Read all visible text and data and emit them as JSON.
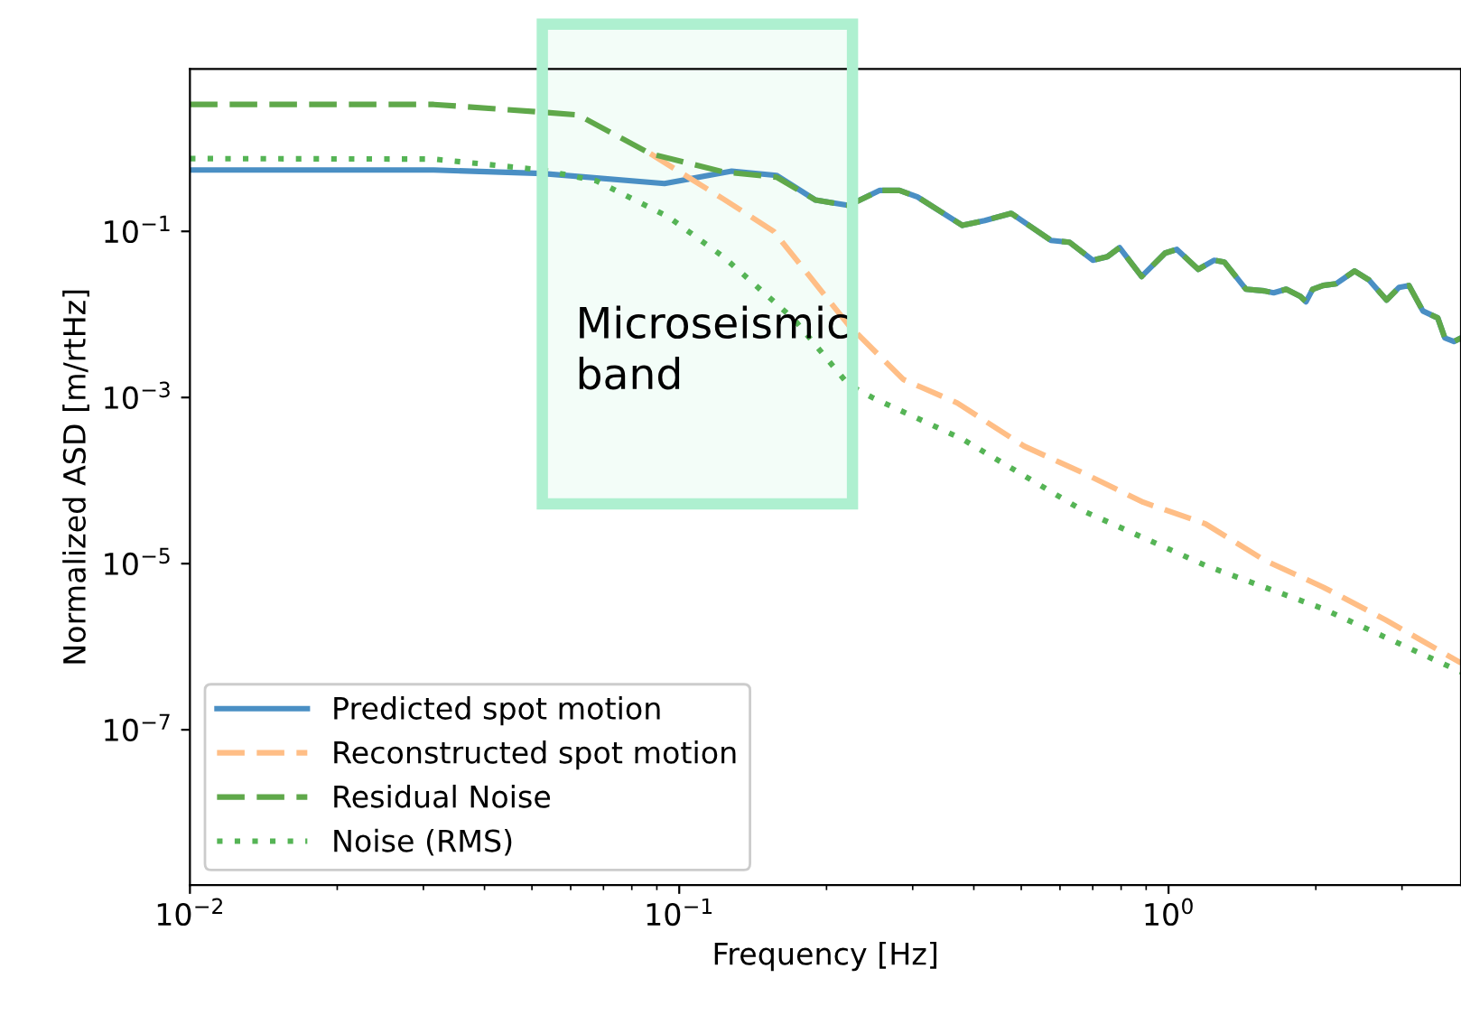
{
  "chart_data": {
    "type": "line",
    "xlabel": "Frequency [Hz]",
    "ylabel": "Normalized ASD [m/rtHz]",
    "log": "xy",
    "xlim": [
      0.01,
      3.96
    ],
    "ylim": [
      1.35e-09,
      9
    ],
    "xticks": [
      {
        "value": 0.01,
        "label": "10$^{−2}$"
      },
      {
        "value": 0.1,
        "label": "10$^{−1}$"
      },
      {
        "value": 1,
        "label": "10$^{0}$"
      }
    ],
    "yticks": [
      {
        "value": 1e-07,
        "label": "10$^{−7}$"
      },
      {
        "value": 1e-05,
        "label": "10$^{−5}$"
      },
      {
        "value": 0.001,
        "label": "10$^{−3}$"
      },
      {
        "value": 0.1,
        "label": "10$^{−1}$"
      }
    ],
    "grid": false,
    "legend": "bottom left",
    "bands": [
      {
        "axis": "x",
        "from": 0.0525,
        "to": 0.226,
        "label": "Microseismic\nband",
        "color": "#aef0d0"
      }
    ],
    "series": [
      {
        "name": "Predicted spot motion",
        "color": "#4a8fc4",
        "line_style": "solid",
        "x": [
          0.01,
          0.0315,
          0.0525,
          0.0933,
          0.128,
          0.158,
          0.19,
          0.222,
          0.257,
          0.282,
          0.307,
          0.379,
          0.421,
          0.477,
          0.575,
          0.627,
          0.7,
          0.75,
          0.794,
          0.881,
          0.984,
          1.04,
          1.15,
          1.24,
          1.3,
          1.44,
          1.57,
          1.64,
          1.74,
          1.86,
          1.91,
          1.97,
          2.07,
          2.2,
          2.4,
          2.57,
          2.79,
          2.96,
          3.1,
          3.31,
          3.55,
          3.67,
          3.83,
          3.96
        ],
        "values": [
          0.548,
          0.548,
          0.497,
          0.377,
          0.53,
          0.472,
          0.238,
          0.205,
          0.311,
          0.311,
          0.259,
          0.118,
          0.135,
          0.165,
          0.0779,
          0.0741,
          0.0449,
          0.0496,
          0.0637,
          0.0286,
          0.0548,
          0.0607,
          0.0349,
          0.0449,
          0.0427,
          0.0201,
          0.0192,
          0.0182,
          0.0201,
          0.0165,
          0.0142,
          0.0201,
          0.0223,
          0.0234,
          0.0333,
          0.0259,
          0.0149,
          0.0212,
          0.0223,
          0.011,
          0.00906,
          0.00521,
          0.00472,
          0.00521
        ]
      },
      {
        "name": "Reconstructed spot motion",
        "color": "#ffbe86",
        "line_style": "dashed",
        "x": [
          0.0873,
          0.123,
          0.156,
          0.222,
          0.287,
          0.37,
          0.507,
          0.672,
          0.888,
          1.19,
          1.57,
          2.07,
          2.77,
          3.96
        ],
        "values": [
          0.861,
          0.246,
          0.1,
          0.00741,
          0.00165,
          0.00086,
          0.000259,
          0.000122,
          5.48e-05,
          3.01e-05,
          1.1e-05,
          5.21e-06,
          2.12e-06,
          6.37e-07
        ]
      },
      {
        "name": "Residual Noise",
        "color": "#5fa84a",
        "line_style": "dashed",
        "x": [
          0.01,
          0.0315,
          0.0525,
          0.0621,
          0.0873,
          0.123,
          0.158,
          0.19,
          0.222,
          0.257,
          0.282,
          0.307,
          0.379,
          0.421,
          0.477,
          0.575,
          0.627,
          0.7,
          0.75,
          0.794,
          0.881,
          0.984,
          1.04,
          1.15,
          1.24,
          1.3,
          1.44,
          1.57,
          1.64,
          1.74,
          1.86,
          1.91,
          1.97,
          2.07,
          2.2,
          2.4,
          2.57,
          2.79,
          2.96,
          3.1,
          3.31,
          3.55,
          3.67,
          3.83,
          3.96
        ],
        "values": [
          3.37,
          3.37,
          2.72,
          2.52,
          0.861,
          0.521,
          0.449,
          0.238,
          0.205,
          0.311,
          0.311,
          0.259,
          0.118,
          0.135,
          0.165,
          0.0779,
          0.0741,
          0.0449,
          0.0496,
          0.0637,
          0.0286,
          0.0548,
          0.0607,
          0.0349,
          0.0449,
          0.0427,
          0.0201,
          0.0192,
          0.0182,
          0.0201,
          0.0165,
          0.0142,
          0.0201,
          0.0223,
          0.0234,
          0.0333,
          0.0259,
          0.0149,
          0.0212,
          0.0223,
          0.011,
          0.00906,
          0.00521,
          0.00472,
          0.00521
        ]
      },
      {
        "name": "Noise (RMS)",
        "color": "#55b455",
        "line_style": "dotted",
        "x": [
          0.01,
          0.0315,
          0.0525,
          0.0677,
          0.0951,
          0.123,
          0.172,
          0.222,
          0.248,
          0.379,
          0.672,
          1.19,
          2.07,
          3.96
        ],
        "values": [
          0.752,
          0.741,
          0.548,
          0.406,
          0.149,
          0.0496,
          0.00861,
          0.00142,
          0.001,
          0.000316,
          4.27e-05,
          9.5e-06,
          2.86e-06,
          4.97e-07
        ]
      }
    ]
  }
}
